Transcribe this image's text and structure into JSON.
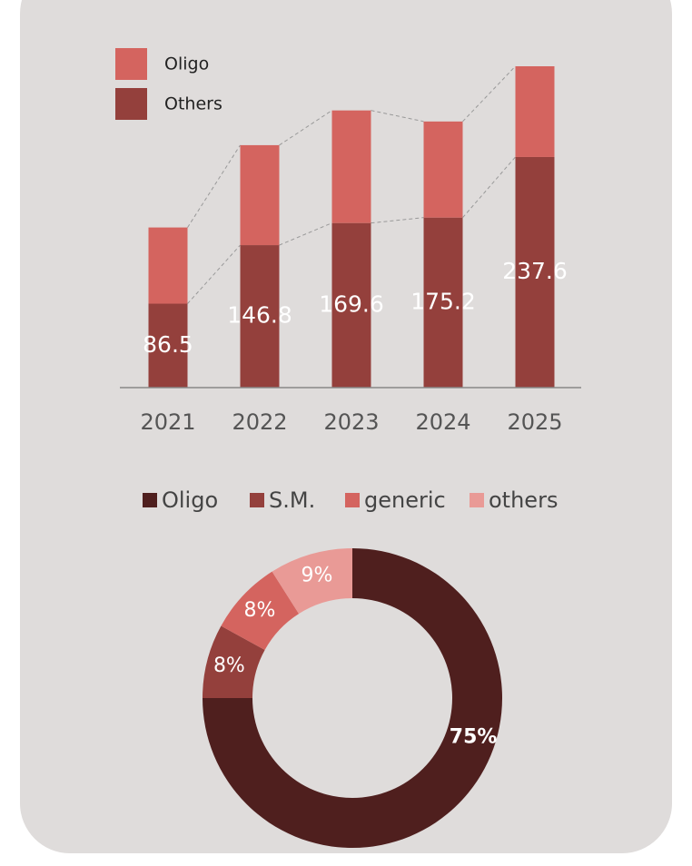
{
  "chart_data": [
    {
      "type": "stacked-bar",
      "categories": [
        "2021",
        "2022",
        "2023",
        "2024",
        "2025"
      ],
      "series": [
        {
          "name": "Others",
          "color": "#94403c",
          "values": [
            86.5,
            146.8,
            169.6,
            175.2,
            237.6
          ]
        },
        {
          "name": "Oligo",
          "color": "#d4645f",
          "values": [
            78.5,
            103,
            116,
            99,
            93.5
          ]
        }
      ]
    },
    {
      "type": "donut",
      "categories": [
        "Oligo",
        "S.M.",
        "generic",
        "others"
      ],
      "values": [
        75,
        8,
        8,
        9
      ],
      "value_labels": [
        "75%",
        "8%",
        "8%",
        "9%"
      ],
      "colors": [
        "#4f1f1e",
        "#94403c",
        "#d4645f",
        "#e99a96"
      ]
    }
  ]
}
